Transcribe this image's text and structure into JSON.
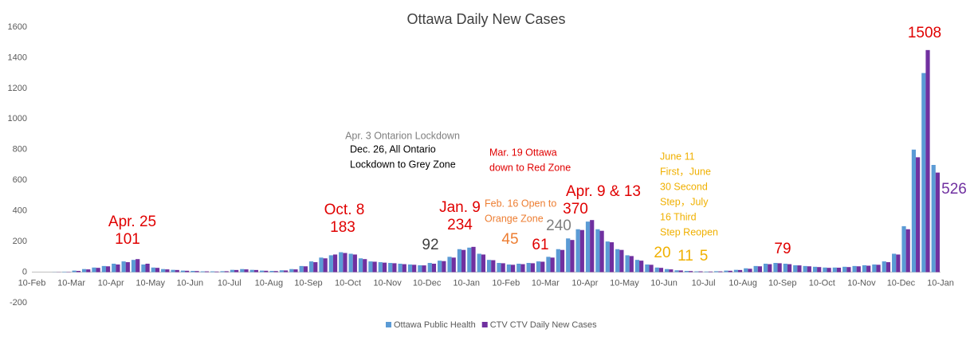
{
  "chart_data": {
    "type": "bar",
    "title": "Ottawa Daily New Cases",
    "categories": [
      "10-Feb",
      null,
      null,
      null,
      "10-Mar",
      null,
      null,
      null,
      "10-Apr",
      null,
      null,
      null,
      "10-May",
      null,
      null,
      null,
      "10-Jun",
      null,
      null,
      null,
      "10-Jul",
      null,
      null,
      null,
      "10-Aug",
      null,
      null,
      null,
      "10-Sep",
      null,
      null,
      null,
      "10-Oct",
      null,
      null,
      null,
      "10-Nov",
      null,
      null,
      null,
      "10-Dec",
      null,
      null,
      null,
      "10-Jan",
      null,
      null,
      null,
      "10-Feb",
      null,
      null,
      null,
      "10-Mar",
      null,
      null,
      null,
      "10-Apr",
      null,
      null,
      null,
      "10-May",
      null,
      null,
      null,
      "10-Jun",
      null,
      null,
      null,
      "10-Jul",
      null,
      null,
      null,
      "10-Aug",
      null,
      null,
      null,
      "10-Sep",
      null,
      null,
      null,
      "10-Oct",
      null,
      null,
      null,
      "10-Nov",
      null,
      null,
      null,
      "10-Dec",
      null,
      null,
      null,
      "10-Jan"
    ],
    "series": [
      {
        "name": "Ottawa Public Health",
        "color": "#5b9bd5",
        "values": [
          0,
          0,
          1,
          3,
          10,
          20,
          30,
          40,
          55,
          70,
          80,
          50,
          30,
          20,
          15,
          10,
          8,
          5,
          5,
          6,
          15,
          20,
          15,
          10,
          8,
          12,
          20,
          40,
          70,
          95,
          110,
          130,
          120,
          90,
          70,
          65,
          60,
          55,
          50,
          45,
          60,
          75,
          100,
          150,
          160,
          120,
          80,
          60,
          50,
          55,
          60,
          70,
          100,
          150,
          220,
          280,
          330,
          280,
          200,
          150,
          110,
          80,
          50,
          30,
          20,
          12,
          8,
          5,
          4,
          6,
          10,
          15,
          25,
          40,
          55,
          60,
          55,
          45,
          40,
          35,
          30,
          30,
          35,
          40,
          45,
          50,
          70,
          120,
          300,
          800,
          1300,
          700,
          null
        ]
      },
      {
        "name": "CTV CTV Daily New Cases",
        "color": "#7030a0",
        "values": [
          0,
          0,
          1,
          2,
          8,
          18,
          28,
          38,
          50,
          65,
          85,
          55,
          28,
          18,
          14,
          9,
          7,
          5,
          4,
          6,
          14,
          18,
          14,
          9,
          7,
          11,
          18,
          38,
          65,
          90,
          115,
          125,
          115,
          85,
          68,
          62,
          58,
          52,
          48,
          44,
          55,
          72,
          95,
          145,
          165,
          115,
          78,
          58,
          48,
          52,
          58,
          68,
          95,
          145,
          210,
          275,
          340,
          270,
          195,
          145,
          105,
          75,
          48,
          28,
          18,
          11,
          7,
          5,
          4,
          5,
          9,
          14,
          22,
          38,
          52,
          58,
          52,
          44,
          38,
          33,
          28,
          29,
          33,
          38,
          42,
          48,
          65,
          115,
          280,
          750,
          1450,
          650,
          null
        ]
      }
    ],
    "ylim": [
      -200,
      1600
    ],
    "yticks": [
      -200,
      0,
      200,
      400,
      600,
      800,
      1000,
      1200,
      1400,
      1600
    ],
    "grid": false,
    "legend": "bottom",
    "annotations": [
      {
        "text": "Apr. 25",
        "color": "#e00000"
      },
      {
        "text": "101",
        "color": "#e00000"
      },
      {
        "text": "Oct. 8",
        "color": "#e00000"
      },
      {
        "text": "183",
        "color": "#e00000"
      },
      {
        "text": "Apr. 3 Ontarion Lockdown",
        "color": "#7f7f7f"
      },
      {
        "text": "Dec. 26, All Ontario",
        "color": "#000000"
      },
      {
        "text": "Lockdown to Grey Zone",
        "color": "#000000"
      },
      {
        "text": "Mar. 19 Ottawa",
        "color": "#e00000"
      },
      {
        "text": "down to Red Zone",
        "color": "#e00000"
      },
      {
        "text": "Jan. 9",
        "color": "#e00000"
      },
      {
        "text": "234",
        "color": "#e00000"
      },
      {
        "text": "92",
        "color": "#404040"
      },
      {
        "text": "Feb. 16 Open to",
        "color": "#ed7d31"
      },
      {
        "text": "Orange Zone",
        "color": "#ed7d31"
      },
      {
        "text": "45",
        "color": "#ed7d31"
      },
      {
        "text": "61",
        "color": "#e00000"
      },
      {
        "text": "240",
        "color": "#7f7f7f"
      },
      {
        "text": "Apr. 9 & 13",
        "color": "#e00000"
      },
      {
        "text": "370",
        "color": "#e00000"
      },
      {
        "text": "June 11",
        "color": "#f0b000"
      },
      {
        "text": "First，June",
        "color": "#f0b000"
      },
      {
        "text": "30 Second",
        "color": "#f0b000"
      },
      {
        "text": "Step，July",
        "color": "#f0b000"
      },
      {
        "text": "16 Third",
        "color": "#f0b000"
      },
      {
        "text": "Step Reopen",
        "color": "#f0b000"
      },
      {
        "text": "20",
        "color": "#f0b000"
      },
      {
        "text": "11",
        "color": "#f0b000"
      },
      {
        "text": "5",
        "color": "#f0b000"
      },
      {
        "text": "79",
        "color": "#e00000"
      },
      {
        "text": "1508",
        "color": "#e00000"
      },
      {
        "text": "526",
        "color": "#7030a0"
      }
    ]
  }
}
